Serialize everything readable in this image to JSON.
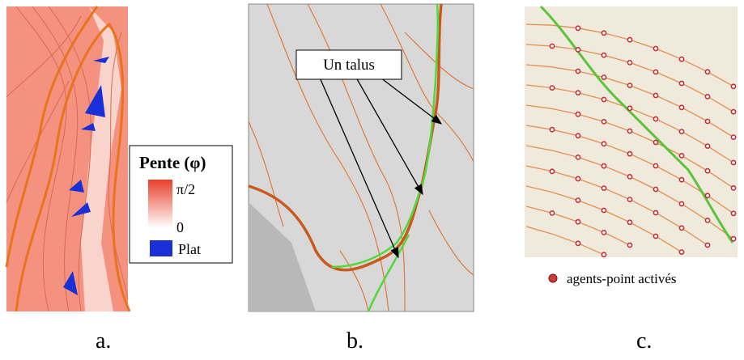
{
  "panel_a": {
    "label": "a.",
    "legend": {
      "title": "Pente (φ)",
      "high": "π/2",
      "low": "0",
      "flat": "Plat"
    }
  },
  "panel_b": {
    "label": "b.",
    "callout": "Un talus"
  },
  "panel_c": {
    "label": "c.",
    "legend": "agents-point activés"
  }
}
